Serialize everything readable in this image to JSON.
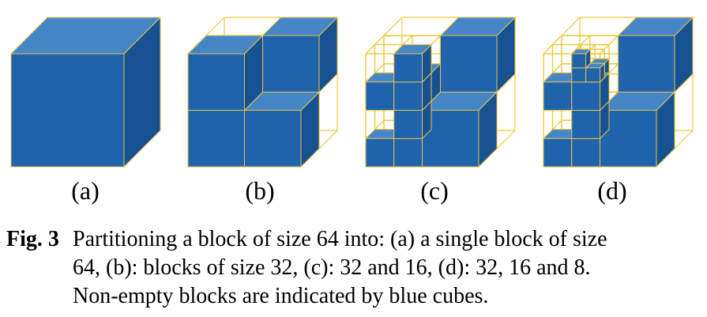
{
  "colors": {
    "cube_front": "#1f63ad",
    "cube_top": "#4586c6",
    "cube_side": "#165291",
    "cube_edge": "#e8c24a",
    "grid_line": "#ecc93a"
  },
  "panels": [
    {
      "label": "(a)"
    },
    {
      "label": "(b)"
    },
    {
      "label": "(c)"
    },
    {
      "label": "(d)"
    }
  ],
  "caption": {
    "number": "Fig. 3",
    "lines": [
      "Partitioning a block of size 64 into: (a) a single block of size",
      "64, (b): blocks of size 32, (c): 32 and 16, (d): 32, 16 and 8.",
      "Non-empty blocks are indicated by blue cubes."
    ]
  }
}
